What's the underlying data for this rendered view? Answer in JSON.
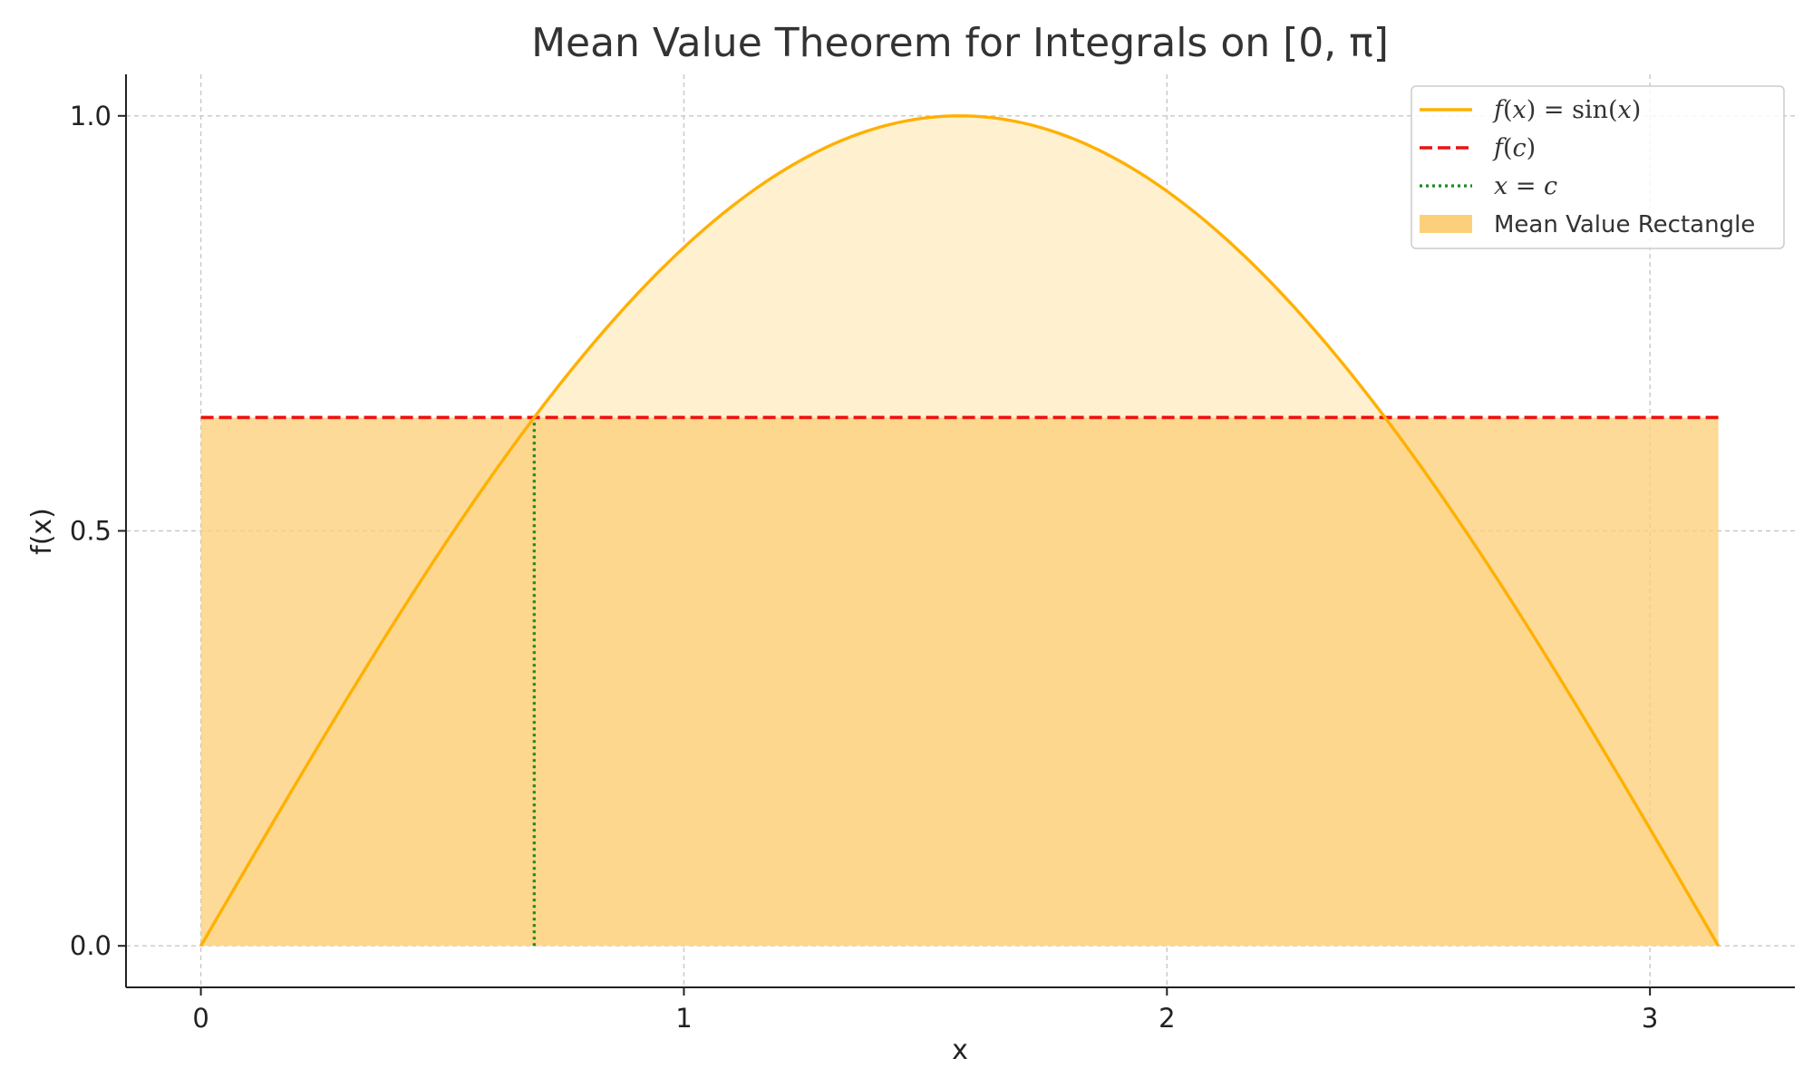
{
  "chart_data": {
    "type": "line",
    "title": "Mean Value Theorem for Integrals on [0, π]",
    "xlabel": "x",
    "ylabel": "f(x)",
    "xlim": [
      -0.155,
      3.3
    ],
    "ylim": [
      -0.05,
      1.05
    ],
    "x_ticks": [
      0,
      1,
      2,
      3
    ],
    "y_ticks": [
      0.0,
      0.5,
      1.0
    ],
    "x_tick_labels": [
      "0",
      "1",
      "2",
      "3"
    ],
    "y_tick_labels": [
      "0.0",
      "0.5",
      "1.0"
    ],
    "grid": true,
    "grid_style": "dashed",
    "legend_position": "top-right",
    "interval": [
      0,
      3.14159
    ],
    "function": "sin(x)",
    "mean_value": 0.6366,
    "c": 0.6901,
    "series": [
      {
        "name": "f(x) = sin(x)",
        "kind": "curve",
        "color": "#FFB000"
      },
      {
        "name": "f(c)",
        "kind": "horizontal-dashed",
        "y": 0.6366,
        "color": "#EE1111"
      },
      {
        "name": "x = c",
        "kind": "vertical-dotted",
        "x": 0.6901,
        "color": "#1A8A1A"
      },
      {
        "name": "Mean Value Rectangle",
        "kind": "rectangle",
        "x_range": [
          0,
          3.14159
        ],
        "height": 0.6366,
        "color": "#FCD07A"
      }
    ],
    "legend": [
      {
        "label_parts": [
          [
            "f",
            "it"
          ],
          [
            "(",
            ""
          ],
          [
            "x",
            "it"
          ],
          [
            ") = sin(",
            ""
          ],
          [
            "x",
            "it"
          ],
          [
            ")",
            ""
          ]
        ]
      },
      {
        "label_parts": [
          [
            "f",
            "it"
          ],
          [
            "(",
            ""
          ],
          [
            "c",
            "it"
          ],
          [
            ")",
            ""
          ]
        ]
      },
      {
        "label_parts": [
          [
            "x",
            "it"
          ],
          [
            " = ",
            ""
          ],
          [
            "c",
            "it"
          ]
        ]
      },
      {
        "label": "Mean Value Rectangle"
      }
    ],
    "colors": {
      "curve": "#FFB000",
      "curve_fill": "#FFF0CF",
      "rect_fill": "#FCD07A",
      "mean_line": "#EE1111",
      "c_line": "#1A8A1A",
      "grid": "#C8C8C8",
      "axis": "#222222"
    }
  }
}
